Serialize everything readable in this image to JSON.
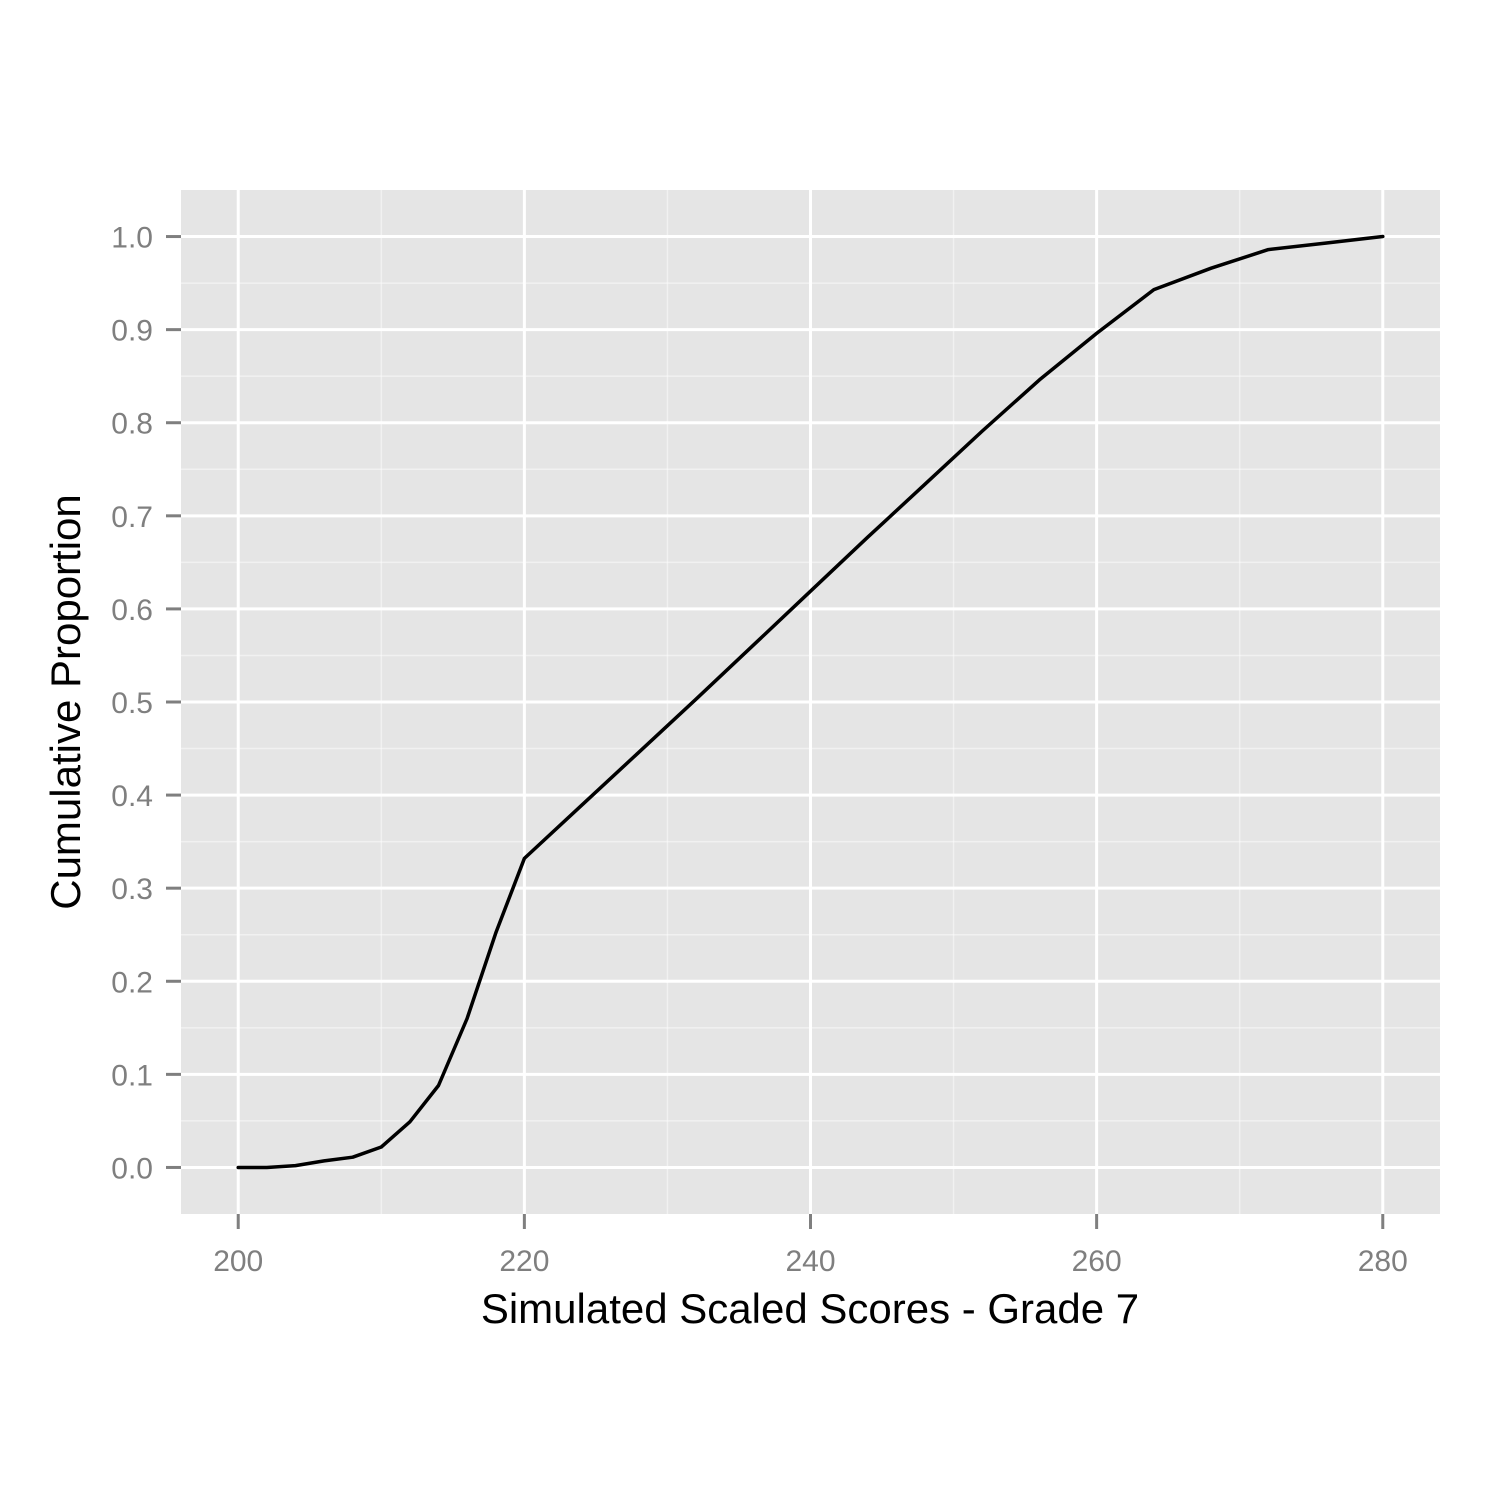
{
  "chart_data": {
    "type": "line",
    "xlabel": "Simulated Scaled Scores - Grade 7",
    "ylabel": "Cumulative Proportion",
    "xlim": [
      196,
      284
    ],
    "ylim": [
      -0.05,
      1.05
    ],
    "x_ticks": [
      200,
      220,
      240,
      260,
      280
    ],
    "x_tick_labels": [
      "200",
      "220",
      "240",
      "260",
      "280"
    ],
    "y_ticks": [
      0.0,
      0.1,
      0.2,
      0.3,
      0.4,
      0.5,
      0.6,
      0.7,
      0.8,
      0.9,
      1.0
    ],
    "y_tick_labels": [
      "0.0",
      "0.1",
      "0.2",
      "0.3",
      "0.4",
      "0.5",
      "0.6",
      "0.7",
      "0.8",
      "0.9",
      "1.0"
    ],
    "grid": true,
    "panel_background": "#e5e5e5",
    "gridline_color": "#ffffff",
    "line_color": "#000000",
    "series": [
      {
        "x": [
          200,
          202,
          204,
          206,
          208,
          210,
          212,
          214,
          216,
          218,
          220,
          224,
          228,
          232,
          236,
          240,
          244,
          248,
          252,
          256,
          260,
          264,
          268,
          272,
          276,
          280
        ],
        "y": [
          0.0,
          0.0,
          0.002,
          0.007,
          0.011,
          0.022,
          0.049,
          0.088,
          0.16,
          0.252,
          0.332,
          0.389,
          0.446,
          0.503,
          0.561,
          0.619,
          0.677,
          0.734,
          0.791,
          0.846,
          0.896,
          0.943,
          0.966,
          0.986,
          0.993,
          1.0
        ]
      }
    ]
  }
}
